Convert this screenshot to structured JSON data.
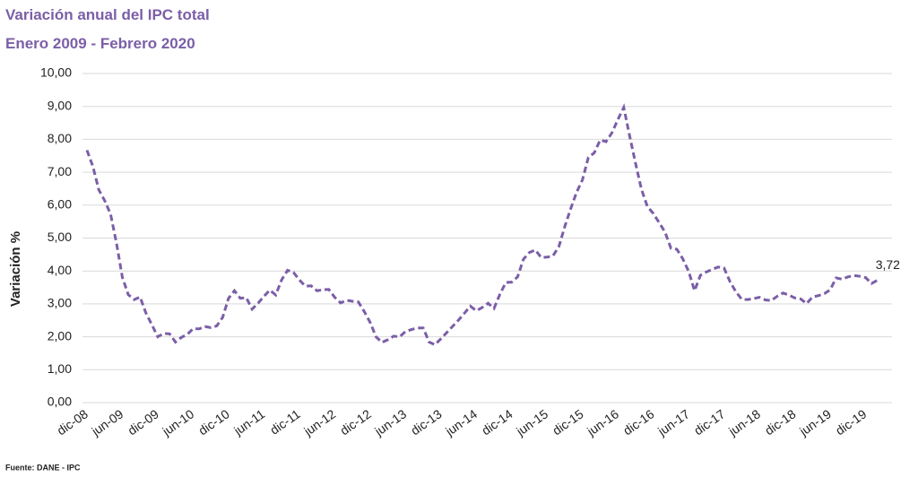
{
  "chart_data": {
    "type": "line",
    "title": "Variación anual del IPC total",
    "subtitle": "Enero 2009 - Febrero 2020",
    "y_label": "Variación %",
    "source": "Fuente: DANE - IPC",
    "categories": [
      "dic-08",
      null,
      null,
      null,
      null,
      null,
      "jun-09",
      null,
      null,
      null,
      null,
      null,
      "dic-09",
      null,
      null,
      null,
      null,
      null,
      "jun-10",
      null,
      null,
      null,
      null,
      null,
      "dic-10",
      null,
      null,
      null,
      null,
      null,
      "jun-11",
      null,
      null,
      null,
      null,
      null,
      "dic-11",
      null,
      null,
      null,
      null,
      null,
      "jun-12",
      null,
      null,
      null,
      null,
      null,
      "dic-12",
      null,
      null,
      null,
      null,
      null,
      "jun-13",
      null,
      null,
      null,
      null,
      null,
      "dic-13",
      null,
      null,
      null,
      null,
      null,
      "jun-14",
      null,
      null,
      null,
      null,
      null,
      "dic-14",
      null,
      null,
      null,
      null,
      null,
      "jun-15",
      null,
      null,
      null,
      null,
      null,
      "dic-15",
      null,
      null,
      null,
      null,
      null,
      "jun-16",
      null,
      null,
      null,
      null,
      null,
      "dic-16",
      null,
      null,
      null,
      null,
      null,
      "jun-17",
      null,
      null,
      null,
      null,
      null,
      "dic-17",
      null,
      null,
      null,
      null,
      null,
      "jun-18",
      null,
      null,
      null,
      null,
      null,
      "dic-18",
      null,
      null,
      null,
      null,
      null,
      "jun-19",
      null,
      null,
      null,
      null,
      null,
      "dic-19",
      null,
      null
    ],
    "series": [
      {
        "name": "IPC",
        "color": "#7b5ea7",
        "values": [
          7.67,
          7.18,
          6.47,
          6.14,
          5.73,
          4.85,
          3.81,
          3.28,
          3.13,
          3.21,
          2.72,
          2.37,
          2.0,
          2.1,
          2.09,
          1.84,
          1.98,
          2.07,
          2.25,
          2.24,
          2.31,
          2.28,
          2.33,
          2.59,
          3.17,
          3.4,
          3.17,
          3.19,
          2.84,
          3.02,
          3.23,
          3.42,
          3.27,
          3.73,
          4.02,
          3.96,
          3.73,
          3.54,
          3.55,
          3.4,
          3.43,
          3.44,
          3.2,
          3.03,
          3.11,
          3.08,
          3.06,
          2.77,
          2.44,
          2.0,
          1.83,
          1.91,
          2.02,
          2.0,
          2.16,
          2.22,
          2.27,
          2.27,
          1.84,
          1.76,
          1.94,
          2.13,
          2.32,
          2.51,
          2.72,
          2.93,
          2.79,
          2.89,
          3.02,
          2.86,
          3.29,
          3.65,
          3.66,
          3.82,
          4.36,
          4.56,
          4.64,
          4.41,
          4.42,
          4.46,
          4.74,
          5.35,
          5.89,
          6.39,
          6.77,
          7.45,
          7.59,
          7.98,
          7.93,
          8.2,
          8.6,
          8.97,
          8.1,
          7.27,
          6.48,
          5.96,
          5.75,
          5.47,
          5.18,
          4.69,
          4.66,
          4.37,
          3.99,
          3.4,
          3.87,
          3.97,
          4.05,
          4.12,
          4.09,
          3.68,
          3.37,
          3.14,
          3.13,
          3.16,
          3.2,
          3.12,
          3.1,
          3.23,
          3.33,
          3.27,
          3.18,
          3.15,
          3.01,
          3.21,
          3.25,
          3.31,
          3.43,
          3.79,
          3.75,
          3.82,
          3.86,
          3.84,
          3.8,
          3.62,
          3.72
        ],
        "value_labels": [
          null,
          null,
          null,
          null,
          null,
          null,
          null,
          null,
          null,
          null,
          null,
          null,
          null,
          null,
          null,
          null,
          null,
          null,
          null,
          null,
          null,
          null,
          null,
          null,
          null,
          null,
          null,
          null,
          null,
          null,
          null,
          null,
          null,
          null,
          null,
          null,
          null,
          null,
          null,
          null,
          null,
          null,
          null,
          null,
          null,
          null,
          null,
          null,
          null,
          null,
          null,
          null,
          null,
          null,
          null,
          null,
          null,
          null,
          null,
          null,
          null,
          null,
          null,
          null,
          null,
          null,
          null,
          null,
          null,
          null,
          null,
          null,
          null,
          null,
          null,
          null,
          null,
          null,
          null,
          null,
          null,
          null,
          null,
          null,
          null,
          null,
          null,
          null,
          null,
          null,
          null,
          null,
          null,
          null,
          null,
          null,
          null,
          null,
          null,
          null,
          null,
          null,
          null,
          null,
          null,
          null,
          null,
          null,
          null,
          null,
          null,
          null,
          null,
          null,
          null,
          null,
          null,
          null,
          null,
          null,
          null,
          null,
          null,
          null,
          null,
          null,
          null,
          null,
          null,
          null,
          null,
          null,
          null,
          null,
          "3,72"
        ]
      }
    ],
    "ylim": [
      0,
      10
    ],
    "yticks": [
      {
        "value": 0,
        "label": "0,00"
      },
      {
        "value": 1,
        "label": "1,00"
      },
      {
        "value": 2,
        "label": "2,00"
      },
      {
        "value": 3,
        "label": "3,00"
      },
      {
        "value": 4,
        "label": "4,00"
      },
      {
        "value": 5,
        "label": "5,00"
      },
      {
        "value": 6,
        "label": "6,00"
      },
      {
        "value": 7,
        "label": "7,00"
      },
      {
        "value": 8,
        "label": "8,00"
      },
      {
        "value": 9,
        "label": "9,00"
      },
      {
        "value": 10,
        "label": "10,00"
      }
    ],
    "grid": true
  }
}
